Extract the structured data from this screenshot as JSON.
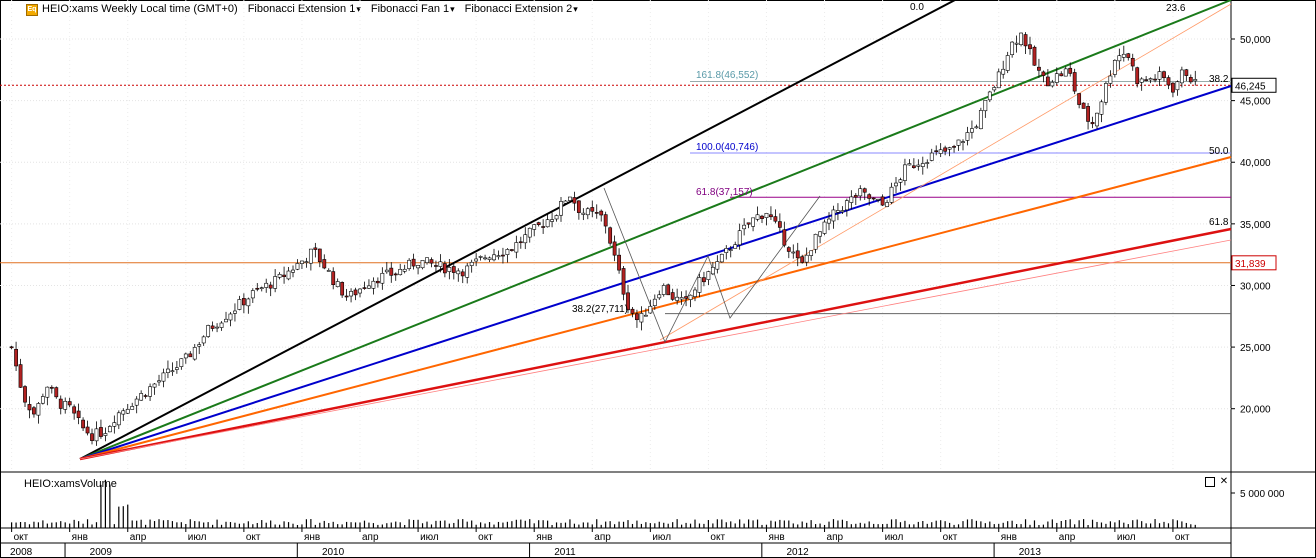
{
  "header": {
    "logo": "Eq",
    "title": "HEIO:xams Weekly Local time (GMT+0)",
    "menus": [
      "Fibonacci Extension 1",
      "Fibonacci Fan 1",
      "Fibonacci Extension 2"
    ]
  },
  "volume_panel": {
    "title": "HEIO:xamsVolume",
    "max_label": "5 000 000"
  },
  "window_icons": {
    "maximize": "maximize-icon",
    "close": "close-icon"
  },
  "colors": {
    "up": "#ffffff",
    "down": "#b22222",
    "price_line": "#cc0000",
    "fan_black": "#000000",
    "fan_green": "#1a7a1a",
    "fan_blue": "#0000cc",
    "fan_orange": "#ff6600",
    "fan_red": "#dd1111",
    "level_orange": "#e07020"
  },
  "chart_data": {
    "type": "candlestick",
    "symbol": "HEIO:xams",
    "timeframe": "Weekly",
    "y_axis": {
      "range": [
        16000,
        53000
      ],
      "ticks": [
        "50,000",
        "45,000",
        "40,000",
        "35,000",
        "30,000",
        "25,000",
        "20,000"
      ]
    },
    "last_price": "46,245",
    "level_marker": "31,839",
    "fib_labels": {
      "ext_top": "161.8(46,552)",
      "ext_100": "100.0(40,746)",
      "ext_618": "61.8(37,157)",
      "ext_382": "38.2(27,711)",
      "fan_00": "0.0",
      "fan_236": "23.6",
      "fan_382": "38.2",
      "fan_500": "50.0",
      "fan_618": "61.8"
    },
    "x_axis": {
      "month_labels": [
        "окт",
        "янв",
        "апр",
        "июл",
        "окт",
        "янв",
        "апр",
        "июл",
        "окт",
        "янв",
        "апр",
        "июл",
        "окт",
        "янв",
        "апр",
        "июл",
        "окт",
        "янв",
        "апр",
        "июл",
        "окт"
      ],
      "year_labels": [
        "2008",
        "2009",
        "2010",
        "2011",
        "2012",
        "2013"
      ]
    },
    "weekly_close_path": [
      [
        2008.75,
        25000
      ],
      [
        2008.8,
        21000
      ],
      [
        2008.85,
        19500
      ],
      [
        2008.9,
        22000
      ],
      [
        2008.95,
        20500
      ],
      [
        2009.0,
        20000
      ],
      [
        2009.05,
        18500
      ],
      [
        2009.1,
        17800
      ],
      [
        2009.15,
        18200
      ],
      [
        2009.2,
        19500
      ],
      [
        2009.3,
        21000
      ],
      [
        2009.4,
        22500
      ],
      [
        2009.5,
        24000
      ],
      [
        2009.6,
        26500
      ],
      [
        2009.7,
        28000
      ],
      [
        2009.8,
        29500
      ],
      [
        2009.9,
        30500
      ],
      [
        2010.0,
        32000
      ],
      [
        2010.05,
        32800
      ],
      [
        2010.1,
        31500
      ],
      [
        2010.15,
        30000
      ],
      [
        2010.2,
        29000
      ],
      [
        2010.3,
        30500
      ],
      [
        2010.4,
        31000
      ],
      [
        2010.5,
        32000
      ],
      [
        2010.6,
        31500
      ],
      [
        2010.7,
        31200
      ],
      [
        2010.8,
        32500
      ],
      [
        2010.9,
        33000
      ],
      [
        2011.0,
        34500
      ],
      [
        2011.1,
        36000
      ],
      [
        2011.15,
        37500
      ],
      [
        2011.2,
        36000
      ],
      [
        2011.3,
        35500
      ],
      [
        2011.35,
        32000
      ],
      [
        2011.4,
        28500
      ],
      [
        2011.45,
        27000
      ],
      [
        2011.5,
        28500
      ],
      [
        2011.55,
        30000
      ],
      [
        2011.6,
        29000
      ],
      [
        2011.65,
        28500
      ],
      [
        2011.7,
        30000
      ],
      [
        2011.8,
        32000
      ],
      [
        2011.9,
        34500
      ],
      [
        2011.95,
        35500
      ],
      [
        2012.0,
        36000
      ],
      [
        2012.05,
        34500
      ],
      [
        2012.1,
        33000
      ],
      [
        2012.15,
        31500
      ],
      [
        2012.2,
        33500
      ],
      [
        2012.3,
        36000
      ],
      [
        2012.4,
        37500
      ],
      [
        2012.5,
        36500
      ],
      [
        2012.55,
        38000
      ],
      [
        2012.6,
        39500
      ],
      [
        2012.7,
        40500
      ],
      [
        2012.8,
        41000
      ],
      [
        2012.9,
        43000
      ],
      [
        2012.95,
        45000
      ],
      [
        2013.0,
        47000
      ],
      [
        2013.05,
        49500
      ],
      [
        2013.1,
        50500
      ],
      [
        2013.15,
        48000
      ],
      [
        2013.2,
        46500
      ],
      [
        2013.3,
        47500
      ],
      [
        2013.35,
        44500
      ],
      [
        2013.4,
        43000
      ],
      [
        2013.45,
        45500
      ],
      [
        2013.5,
        48500
      ],
      [
        2013.55,
        49000
      ],
      [
        2013.6,
        46500
      ],
      [
        2013.7,
        47000
      ],
      [
        2013.75,
        46000
      ],
      [
        2013.8,
        47500
      ],
      [
        2013.85,
        46245
      ]
    ]
  }
}
